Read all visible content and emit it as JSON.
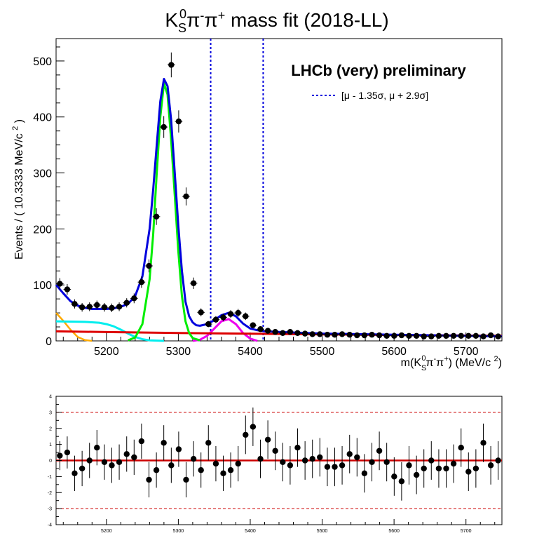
{
  "colors": {
    "data": "#000000",
    "total_fit": "#0000dd",
    "signal": "#00ee00",
    "comb_bkg": "#dd0000",
    "peak_bkg": "#ee00ee",
    "part_reco_1": "#00eeee",
    "part_reco_2": "#ffaa00",
    "window_line": "#0000dd",
    "pull_band": "#cc0000"
  },
  "chart_data": [
    {
      "type": "scatter",
      "panel": "main",
      "title_main": "K",
      "title_sub": "S",
      "title_sup": "0",
      "title_rest": "π",
      "title_sup2": "-",
      "title_rest2": "π",
      "title_sup3": "+",
      "title_tail": " mass fit (2018-LL)",
      "ylabel_main": "Events / ( 10.3333 MeV/c ",
      "ylabel_sup": "2",
      "ylabel_tail": " )",
      "xlabel_a": "m(K",
      "xlabel_sub": "S",
      "xlabel_sup": "0",
      "xlabel_b": "π",
      "xlabel_sup2": "-",
      "xlabel_c": "π",
      "xlabel_sup3": "+",
      "xlabel_d": ") (MeV/c ",
      "xlabel_sup4": "2",
      "xlabel_e": ")",
      "annotation": "LHCb (very) preliminary",
      "legend_entry": "[μ - 1.35σ,   μ + 2.9σ]",
      "legend_placement": "top-right",
      "xlim": [
        5130,
        5750
      ],
      "ylim": [
        0,
        540
      ],
      "x_ticks": [
        5200,
        5300,
        5400,
        5500,
        5600,
        5700
      ],
      "y_ticks": [
        0,
        100,
        200,
        300,
        400,
        500
      ],
      "window_lines_x": [
        5345,
        5418
      ],
      "bin_width": 10.3333,
      "x": [
        5135.2,
        5145.5,
        5155.8,
        5166.2,
        5176.5,
        5186.8,
        5197.2,
        5207.5,
        5217.8,
        5228.2,
        5238.5,
        5248.8,
        5259.2,
        5269.5,
        5279.8,
        5290.2,
        5300.5,
        5310.8,
        5321.2,
        5331.5,
        5341.8,
        5352.2,
        5362.5,
        5372.8,
        5383.2,
        5393.5,
        5403.8,
        5414.2,
        5424.5,
        5434.8,
        5445.2,
        5455.5,
        5465.8,
        5476.2,
        5486.5,
        5496.8,
        5507.2,
        5517.5,
        5527.8,
        5538.2,
        5548.5,
        5558.8,
        5569.2,
        5579.5,
        5589.8,
        5600.2,
        5610.5,
        5620.8,
        5631.2,
        5641.5,
        5651.8,
        5662.2,
        5672.5,
        5682.8,
        5693.2,
        5703.5,
        5713.8,
        5724.2,
        5734.5,
        5744.8
      ],
      "y": [
        102,
        92,
        66,
        60,
        61,
        64,
        60,
        59,
        61,
        68,
        76,
        105,
        134,
        222,
        382,
        493,
        392,
        258,
        103,
        51,
        30,
        38,
        42,
        48,
        50,
        44,
        28,
        21,
        18,
        16,
        14,
        16,
        14,
        13,
        12,
        12,
        11,
        11,
        12,
        11,
        10,
        10,
        11,
        10,
        9,
        9,
        10,
        9,
        9,
        8,
        8,
        9,
        9,
        9,
        9,
        9,
        9,
        8,
        10,
        8
      ],
      "series": [
        {
          "name": "total",
          "x": [
            5130,
            5140,
            5150,
            5160,
            5170,
            5180,
            5190,
            5200,
            5210,
            5220,
            5230,
            5240,
            5250,
            5260,
            5265,
            5270,
            5275,
            5280,
            5285,
            5290,
            5295,
            5300,
            5305,
            5310,
            5315,
            5320,
            5325,
            5330,
            5340,
            5350,
            5360,
            5370,
            5380,
            5390,
            5400,
            5410,
            5420,
            5440,
            5460,
            5500,
            5550,
            5600,
            5650,
            5700,
            5750
          ],
          "y": [
            100,
            85,
            71,
            63,
            59,
            57,
            57,
            57,
            58,
            61,
            66,
            80,
            115,
            200,
            270,
            350,
            428,
            468,
            455,
            395,
            300,
            205,
            125,
            70,
            44,
            33,
            28,
            27,
            30,
            37,
            46,
            50,
            44,
            31,
            22,
            19,
            17,
            16,
            15,
            13,
            12,
            11,
            10,
            9,
            8
          ]
        },
        {
          "name": "signal",
          "x": [
            5230,
            5240,
            5250,
            5260,
            5265,
            5270,
            5275,
            5280,
            5285,
            5290,
            5295,
            5300,
            5305,
            5310,
            5315,
            5320,
            5330
          ],
          "y": [
            1,
            6,
            30,
            110,
            190,
            300,
            400,
            460,
            440,
            360,
            260,
            160,
            80,
            35,
            14,
            5,
            1
          ]
        },
        {
          "name": "comb",
          "x": [
            5130,
            5200,
            5300,
            5400,
            5500,
            5600,
            5700,
            5750
          ],
          "y": [
            17,
            15.8,
            14.2,
            12.8,
            11.6,
            10.5,
            9.5,
            9
          ]
        },
        {
          "name": "peaking",
          "x": [
            5320,
            5330,
            5340,
            5350,
            5360,
            5370,
            5380,
            5390,
            5400,
            5410
          ],
          "y": [
            0,
            2,
            9,
            22,
            35,
            39,
            30,
            14,
            4,
            0
          ]
        },
        {
          "name": "partreco1",
          "x": [
            5130,
            5150,
            5170,
            5190,
            5200,
            5210,
            5220,
            5230,
            5240,
            5250,
            5260,
            5270,
            5280
          ],
          "y": [
            35,
            34.5,
            34,
            32.5,
            30,
            26,
            20,
            13,
            7,
            3,
            1,
            0.5,
            0
          ]
        },
        {
          "name": "partreco2",
          "x": [
            5130,
            5140,
            5150,
            5160,
            5170,
            5180
          ],
          "y": [
            50,
            36,
            20,
            7,
            1.5,
            0
          ]
        }
      ]
    },
    {
      "type": "scatter",
      "panel": "pull",
      "xlim": [
        5130,
        5750
      ],
      "ylim": [
        -4,
        4
      ],
      "x_ticks": [
        5200,
        5300,
        5400,
        5500,
        5600,
        5700
      ],
      "y_ticks": [
        -4,
        -3,
        -2,
        -1,
        0,
        1,
        2,
        3,
        4
      ],
      "band_lines": [
        -3,
        0,
        3
      ],
      "x": [
        5135.2,
        5145.5,
        5155.8,
        5166.2,
        5176.5,
        5186.8,
        5197.2,
        5207.5,
        5217.8,
        5228.2,
        5238.5,
        5248.8,
        5259.2,
        5269.5,
        5279.8,
        5290.2,
        5300.5,
        5310.8,
        5321.2,
        5331.5,
        5341.8,
        5352.2,
        5362.5,
        5372.8,
        5383.2,
        5393.5,
        5403.8,
        5414.2,
        5424.5,
        5434.8,
        5445.2,
        5455.5,
        5465.8,
        5476.2,
        5486.5,
        5496.8,
        5507.2,
        5517.5,
        5527.8,
        5538.2,
        5548.5,
        5558.8,
        5569.2,
        5579.5,
        5589.8,
        5600.2,
        5610.5,
        5620.8,
        5631.2,
        5641.5,
        5651.8,
        5662.2,
        5672.5,
        5682.8,
        5693.2,
        5703.5,
        5713.8,
        5724.2,
        5734.5,
        5744.8
      ],
      "y": [
        0.3,
        0.5,
        -0.8,
        -0.5,
        0.0,
        0.8,
        -0.1,
        -0.3,
        -0.1,
        0.4,
        0.2,
        1.2,
        -1.2,
        -0.6,
        1.1,
        -0.3,
        0.7,
        -1.2,
        0.1,
        -0.6,
        1.1,
        -0.2,
        -0.8,
        -0.6,
        -0.2,
        1.6,
        2.1,
        0.1,
        1.3,
        0.6,
        -0.1,
        -0.3,
        0.8,
        0.0,
        0.1,
        0.2,
        -0.4,
        -0.4,
        -0.3,
        0.4,
        0.2,
        -0.8,
        -0.1,
        0.6,
        -0.1,
        -1.0,
        -1.3,
        -0.3,
        -0.9,
        -0.5,
        0.0,
        -0.5,
        -0.5,
        -0.2,
        0.8,
        -0.7,
        -0.5,
        1.1,
        -0.3,
        0.0
      ],
      "errors": [
        0.9,
        1.0,
        1.1,
        1.1,
        1.1,
        1.1,
        1.1,
        1.1,
        1.1,
        1.1,
        1.1,
        1.1,
        1.1,
        1.1,
        1.1,
        1.1,
        1.1,
        1.1,
        1.1,
        1.1,
        1.1,
        1.1,
        1.1,
        1.1,
        1.1,
        1.2,
        1.2,
        1.2,
        1.2,
        1.2,
        1.2,
        1.2,
        1.2,
        1.2,
        1.2,
        1.2,
        1.2,
        1.2,
        1.2,
        1.2,
        1.2,
        1.2,
        1.2,
        1.2,
        1.2,
        1.2,
        1.2,
        1.2,
        1.2,
        1.2,
        1.2,
        1.2,
        1.2,
        1.2,
        1.2,
        1.2,
        1.2,
        1.2,
        1.2,
        1.2
      ]
    }
  ]
}
